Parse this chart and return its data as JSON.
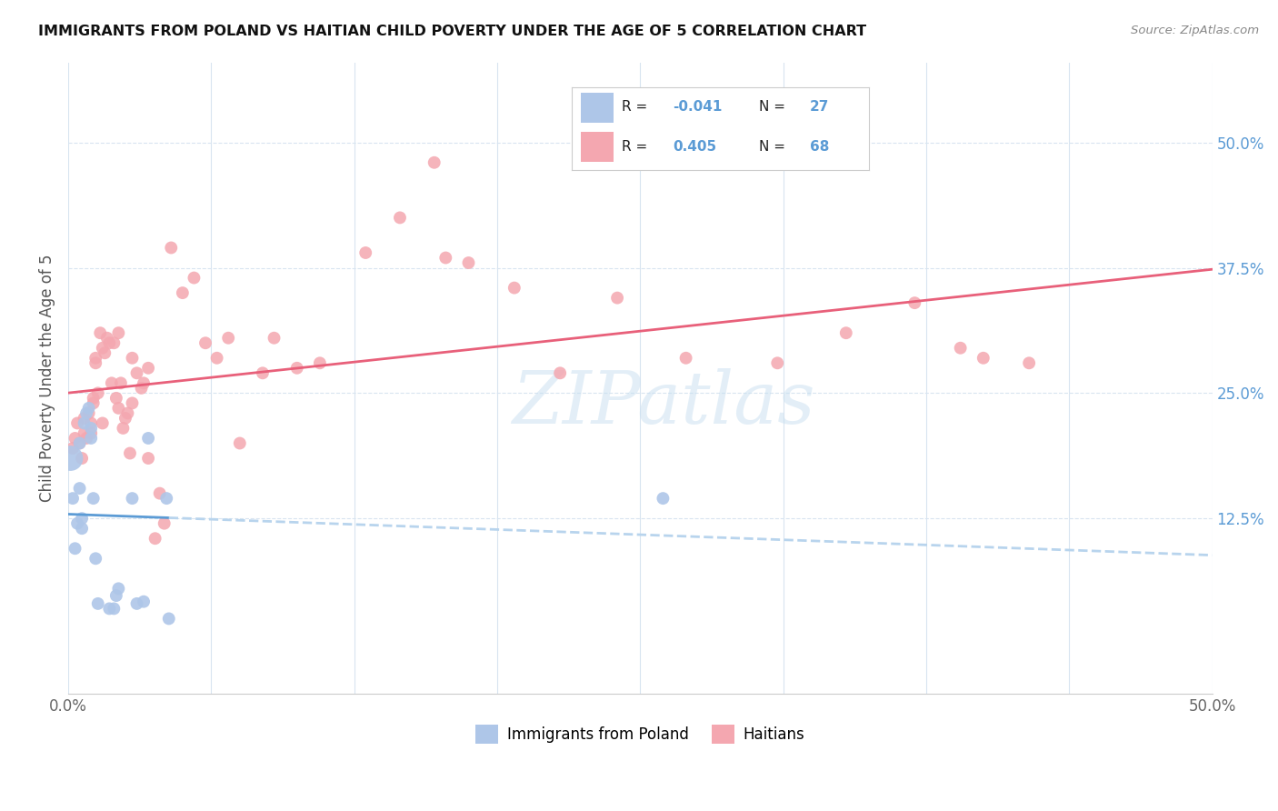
{
  "title": "IMMIGRANTS FROM POLAND VS HAITIAN CHILD POVERTY UNDER THE AGE OF 5 CORRELATION CHART",
  "source": "Source: ZipAtlas.com",
  "ylabel": "Child Poverty Under the Age of 5",
  "ylabel_right_labels": [
    "50.0%",
    "37.5%",
    "25.0%",
    "12.5%"
  ],
  "ylabel_right_values": [
    0.5,
    0.375,
    0.25,
    0.125
  ],
  "xlim": [
    0.0,
    0.5
  ],
  "ylim": [
    -0.05,
    0.58
  ],
  "color_poland": "#aec6e8",
  "color_haiti": "#f4a7b0",
  "trendline_poland_solid_color": "#5b9bd5",
  "trendline_poland_dashed_color": "#b8d4ed",
  "trendline_haiti_color": "#e8607a",
  "background_color": "#ffffff",
  "grid_color": "#d8e4f0",
  "poland_x": [
    0.001,
    0.002,
    0.003,
    0.004,
    0.005,
    0.005,
    0.006,
    0.006,
    0.007,
    0.008,
    0.009,
    0.01,
    0.01,
    0.011,
    0.012,
    0.013,
    0.018,
    0.02,
    0.021,
    0.022,
    0.028,
    0.03,
    0.033,
    0.035,
    0.043,
    0.044,
    0.26
  ],
  "poland_y": [
    0.185,
    0.145,
    0.095,
    0.12,
    0.155,
    0.2,
    0.115,
    0.125,
    0.22,
    0.23,
    0.235,
    0.205,
    0.215,
    0.145,
    0.085,
    0.04,
    0.035,
    0.035,
    0.048,
    0.055,
    0.145,
    0.04,
    0.042,
    0.205,
    0.145,
    0.025,
    0.145
  ],
  "poland_size_big": [
    0.001
  ],
  "haiti_x": [
    0.002,
    0.003,
    0.004,
    0.005,
    0.006,
    0.007,
    0.007,
    0.008,
    0.009,
    0.01,
    0.01,
    0.011,
    0.011,
    0.012,
    0.012,
    0.013,
    0.014,
    0.015,
    0.016,
    0.017,
    0.018,
    0.019,
    0.02,
    0.021,
    0.022,
    0.023,
    0.024,
    0.025,
    0.026,
    0.027,
    0.028,
    0.03,
    0.032,
    0.033,
    0.035,
    0.038,
    0.04,
    0.042,
    0.05,
    0.055,
    0.06,
    0.065,
    0.07,
    0.075,
    0.085,
    0.09,
    0.1,
    0.11,
    0.13,
    0.145,
    0.16,
    0.165,
    0.175,
    0.195,
    0.215,
    0.24,
    0.27,
    0.31,
    0.34,
    0.37,
    0.39,
    0.4,
    0.42,
    0.045,
    0.028,
    0.015,
    0.022,
    0.035
  ],
  "haiti_y": [
    0.195,
    0.205,
    0.22,
    0.2,
    0.185,
    0.21,
    0.225,
    0.205,
    0.23,
    0.21,
    0.22,
    0.24,
    0.245,
    0.285,
    0.28,
    0.25,
    0.31,
    0.22,
    0.29,
    0.305,
    0.3,
    0.26,
    0.3,
    0.245,
    0.235,
    0.26,
    0.215,
    0.225,
    0.23,
    0.19,
    0.24,
    0.27,
    0.255,
    0.26,
    0.185,
    0.105,
    0.15,
    0.12,
    0.35,
    0.365,
    0.3,
    0.285,
    0.305,
    0.2,
    0.27,
    0.305,
    0.275,
    0.28,
    0.39,
    0.425,
    0.48,
    0.385,
    0.38,
    0.355,
    0.27,
    0.345,
    0.285,
    0.28,
    0.31,
    0.34,
    0.295,
    0.285,
    0.28,
    0.395,
    0.285,
    0.295,
    0.31,
    0.275
  ],
  "watermark_text": "ZIPatlas",
  "watermark_color": "#c8dff0",
  "watermark_alpha": 0.5,
  "legend_r1": "-0.041",
  "legend_n1": "27",
  "legend_r2": "0.405",
  "legend_n2": "68",
  "trendline_split_x": 0.044,
  "marker_size": 100,
  "marker_size_big": 400
}
